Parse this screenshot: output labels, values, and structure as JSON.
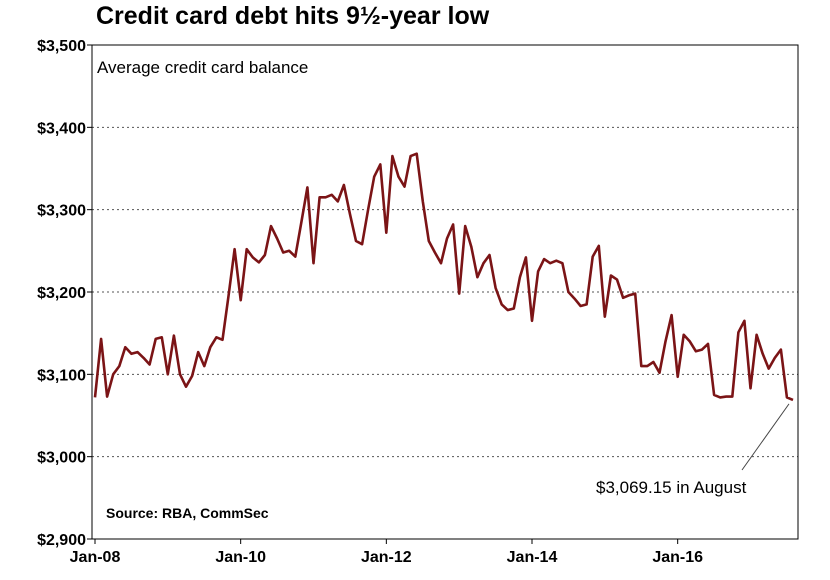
{
  "chart_data": {
    "type": "line",
    "title": "Credit card debt hits 9½-year low",
    "subtitle": "Average credit card balance",
    "source": "Source: RBA, CommSec",
    "annotation": "$3,069.15 in August",
    "ylim": [
      2900,
      3500
    ],
    "xlim": [
      "2008-01",
      "2017-08"
    ],
    "y_ticks": [
      {
        "value": 3500,
        "label": "$3,500"
      },
      {
        "value": 3400,
        "label": "$3,400"
      },
      {
        "value": 3300,
        "label": "$3,300"
      },
      {
        "value": 3200,
        "label": "$3,200"
      },
      {
        "value": 3100,
        "label": "$3,100"
      },
      {
        "value": 3000,
        "label": "$3,000"
      },
      {
        "value": 2900,
        "label": "$2,900"
      }
    ],
    "x_ticks": [
      {
        "value": "2008-01",
        "label": "Jan-08"
      },
      {
        "value": "2010-01",
        "label": "Jan-10"
      },
      {
        "value": "2012-01",
        "label": "Jan-12"
      },
      {
        "value": "2014-01",
        "label": "Jan-14"
      },
      {
        "value": "2016-01",
        "label": "Jan-16"
      }
    ],
    "grid": true,
    "line_color": "#7b1416",
    "series": [
      {
        "x": [
          "2008-01",
          "2008-02",
          "2008-03",
          "2008-04",
          "2008-05",
          "2008-06",
          "2008-07",
          "2008-08",
          "2008-09",
          "2008-10",
          "2008-11",
          "2008-12",
          "2009-01",
          "2009-02",
          "2009-03",
          "2009-04",
          "2009-05",
          "2009-06",
          "2009-07",
          "2009-08",
          "2009-09",
          "2009-10",
          "2009-11",
          "2009-12",
          "2010-01",
          "2010-02",
          "2010-03",
          "2010-04",
          "2010-05",
          "2010-06",
          "2010-07",
          "2010-08",
          "2010-09",
          "2010-10",
          "2010-11",
          "2010-12",
          "2011-01",
          "2011-02",
          "2011-03",
          "2011-04",
          "2011-05",
          "2011-06",
          "2011-07",
          "2011-08",
          "2011-09",
          "2011-10",
          "2011-11",
          "2011-12",
          "2012-01",
          "2012-02",
          "2012-03",
          "2012-04",
          "2012-05",
          "2012-06",
          "2012-07",
          "2012-08",
          "2012-09",
          "2012-10",
          "2012-11",
          "2012-12",
          "2013-01",
          "2013-02",
          "2013-03",
          "2013-04",
          "2013-05",
          "2013-06",
          "2013-07",
          "2013-08",
          "2013-09",
          "2013-10",
          "2013-11",
          "2013-12",
          "2014-01",
          "2014-02",
          "2014-03",
          "2014-04",
          "2014-05",
          "2014-06",
          "2014-07",
          "2014-08",
          "2014-09",
          "2014-10",
          "2014-11",
          "2014-12",
          "2015-01",
          "2015-02",
          "2015-03",
          "2015-04",
          "2015-05",
          "2015-06",
          "2015-07",
          "2015-08",
          "2015-09",
          "2015-10",
          "2015-11",
          "2015-12",
          "2016-01",
          "2016-02",
          "2016-03",
          "2016-04",
          "2016-05",
          "2016-06",
          "2016-07",
          "2016-08",
          "2016-09",
          "2016-10",
          "2016-11",
          "2016-12",
          "2017-01",
          "2017-02",
          "2017-03",
          "2017-04",
          "2017-05",
          "2017-06",
          "2017-07",
          "2017-08"
        ],
        "values": [
          3072,
          3143,
          3073,
          3100,
          3110,
          3133,
          3125,
          3127,
          3120,
          3112,
          3143,
          3145,
          3100,
          3147,
          3100,
          3085,
          3098,
          3127,
          3110,
          3133,
          3145,
          3142,
          3195,
          3252,
          3190,
          3252,
          3242,
          3236,
          3245,
          3280,
          3265,
          3248,
          3250,
          3243,
          3285,
          3327,
          3235,
          3315,
          3315,
          3318,
          3310,
          3330,
          3295,
          3262,
          3258,
          3300,
          3340,
          3355,
          3272,
          3365,
          3340,
          3328,
          3365,
          3368,
          3310,
          3262,
          3248,
          3235,
          3265,
          3282,
          3198,
          3280,
          3255,
          3218,
          3235,
          3245,
          3205,
          3185,
          3178,
          3180,
          3218,
          3242,
          3165,
          3225,
          3240,
          3235,
          3238,
          3235,
          3200,
          3192,
          3183,
          3185,
          3243,
          3256,
          3170,
          3220,
          3215,
          3193,
          3196,
          3198,
          3110,
          3110,
          3115,
          3102,
          3140,
          3172,
          3097,
          3148,
          3140,
          3128,
          3130,
          3137,
          3075,
          3072,
          3073,
          3073,
          3151,
          3165,
          3083,
          3148,
          3125,
          3107,
          3120,
          3130,
          3072,
          3069
        ]
      }
    ]
  }
}
